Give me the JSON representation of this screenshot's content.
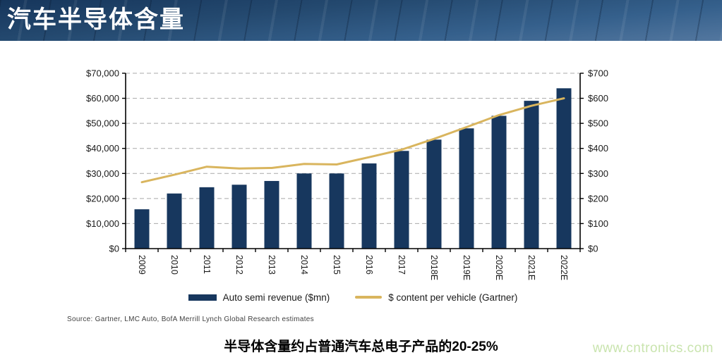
{
  "header": {
    "title": "汽车半导体含量"
  },
  "chart_data": {
    "type": "bar+line combo",
    "categories": [
      "2009",
      "2010",
      "2011",
      "2012",
      "2013",
      "2014",
      "2015",
      "2016",
      "2017",
      "2018E",
      "2019E",
      "2020E",
      "2021E",
      "2022E"
    ],
    "series": [
      {
        "name": "Auto semi revenue ($mn)",
        "type": "bar",
        "axis": "left",
        "color": "#17375E",
        "values": [
          15700,
          22000,
          24500,
          25500,
          27000,
          30000,
          30000,
          34000,
          39000,
          43500,
          48000,
          53000,
          59000,
          64000
        ]
      },
      {
        "name": "$ content per vehicle (Gartner)",
        "type": "line",
        "axis": "right",
        "color": "#D9B55E",
        "values": [
          265,
          295,
          327,
          320,
          322,
          338,
          336,
          365,
          395,
          438,
          485,
          533,
          570,
          600
        ]
      }
    ],
    "left_axis": {
      "min": 0,
      "max": 70000,
      "step": 10000,
      "tick_labels": [
        "$0",
        "$10,000",
        "$20,000",
        "$30,000",
        "$40,000",
        "$50,000",
        "$60,000",
        "$70,000"
      ]
    },
    "right_axis": {
      "min": 0,
      "max": 700,
      "step": 100,
      "tick_labels": [
        "$0",
        "$100",
        "$200",
        "$300",
        "$400",
        "$500",
        "$600",
        "$700"
      ]
    },
    "grid": {
      "horizontal": true,
      "style": "dashed",
      "color": "#A9A9A9"
    },
    "x_label_rotation_deg": 90,
    "legend_position": "bottom"
  },
  "source": {
    "text": "Source:  Gartner, LMC Auto, BofA Merrill Lynch Global Research estimates"
  },
  "caption": {
    "text": "半导体含量约占普通汽车总电子产品的20-25%"
  },
  "watermark": {
    "text": "www.cntronics.com",
    "color": "#c9e4ae"
  }
}
